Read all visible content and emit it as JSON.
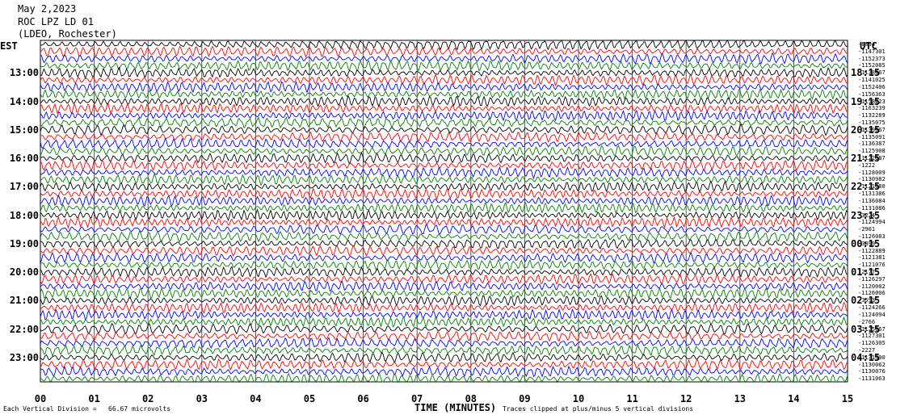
{
  "header": {
    "date": "May 2,2023",
    "station": "ROC LPZ LD 01",
    "network": "(LDEO, Rochester)"
  },
  "labels": {
    "left_zone": "EST",
    "right_zone": "UTC"
  },
  "footer": {
    "division": "Each Vertical Division =   66.67 microvolts",
    "clip": "Traces clipped at plus/minus 5 vertical divisions"
  },
  "chart_data": {
    "type": "line",
    "title": "",
    "xlabel": "TIME (MINUTES)",
    "ylabel": "",
    "x_ticks": [
      "00",
      "01",
      "02",
      "03",
      "04",
      "05",
      "06",
      "07",
      "08",
      "09",
      "10",
      "11",
      "12",
      "13",
      "14",
      "15"
    ],
    "xlim": [
      0,
      15
    ],
    "grid": true,
    "left_time_labels": [
      "13:00",
      "14:00",
      "15:00",
      "16:00",
      "17:00",
      "18:00",
      "19:00",
      "20:00",
      "21:00",
      "22:00",
      "23:00"
    ],
    "right_time_labels": [
      "18:15",
      "19:15",
      "20:15",
      "21:15",
      "22:15",
      "23:15",
      "00:15",
      "01:15",
      "02:15",
      "03:15",
      "04:15"
    ],
    "trace_colors": [
      "#000000",
      "#ff0000",
      "#0000ff",
      "#008000"
    ],
    "trace_counts": [
      "-8094",
      "-1147301",
      "-1152373",
      "-1152085",
      "-1138067",
      "-1141025",
      "-1152406",
      "-1156363",
      "-1158223",
      "-1163239",
      "-1132289",
      "-1135075",
      "-1139067",
      "-1135091",
      "-1136387",
      "-1125908",
      "-1122087",
      "-1222",
      "-1128009",
      "-1130982",
      "-1121080",
      "-1131386",
      "-1136084",
      "-1131086",
      "-3224",
      "-1124994",
      "-2901",
      "-1126083",
      "-3899",
      "-1122889",
      "-1121381",
      "-1121076",
      "-2177",
      "-1126297",
      "-1120002",
      "-1126006",
      "-3593",
      "-1124266",
      "-1124094",
      "-2766",
      "-1125067",
      "-1127301",
      "-1126305",
      "-2227",
      "-1131390",
      "-1130062",
      "-1130076",
      "-1131063"
    ]
  }
}
